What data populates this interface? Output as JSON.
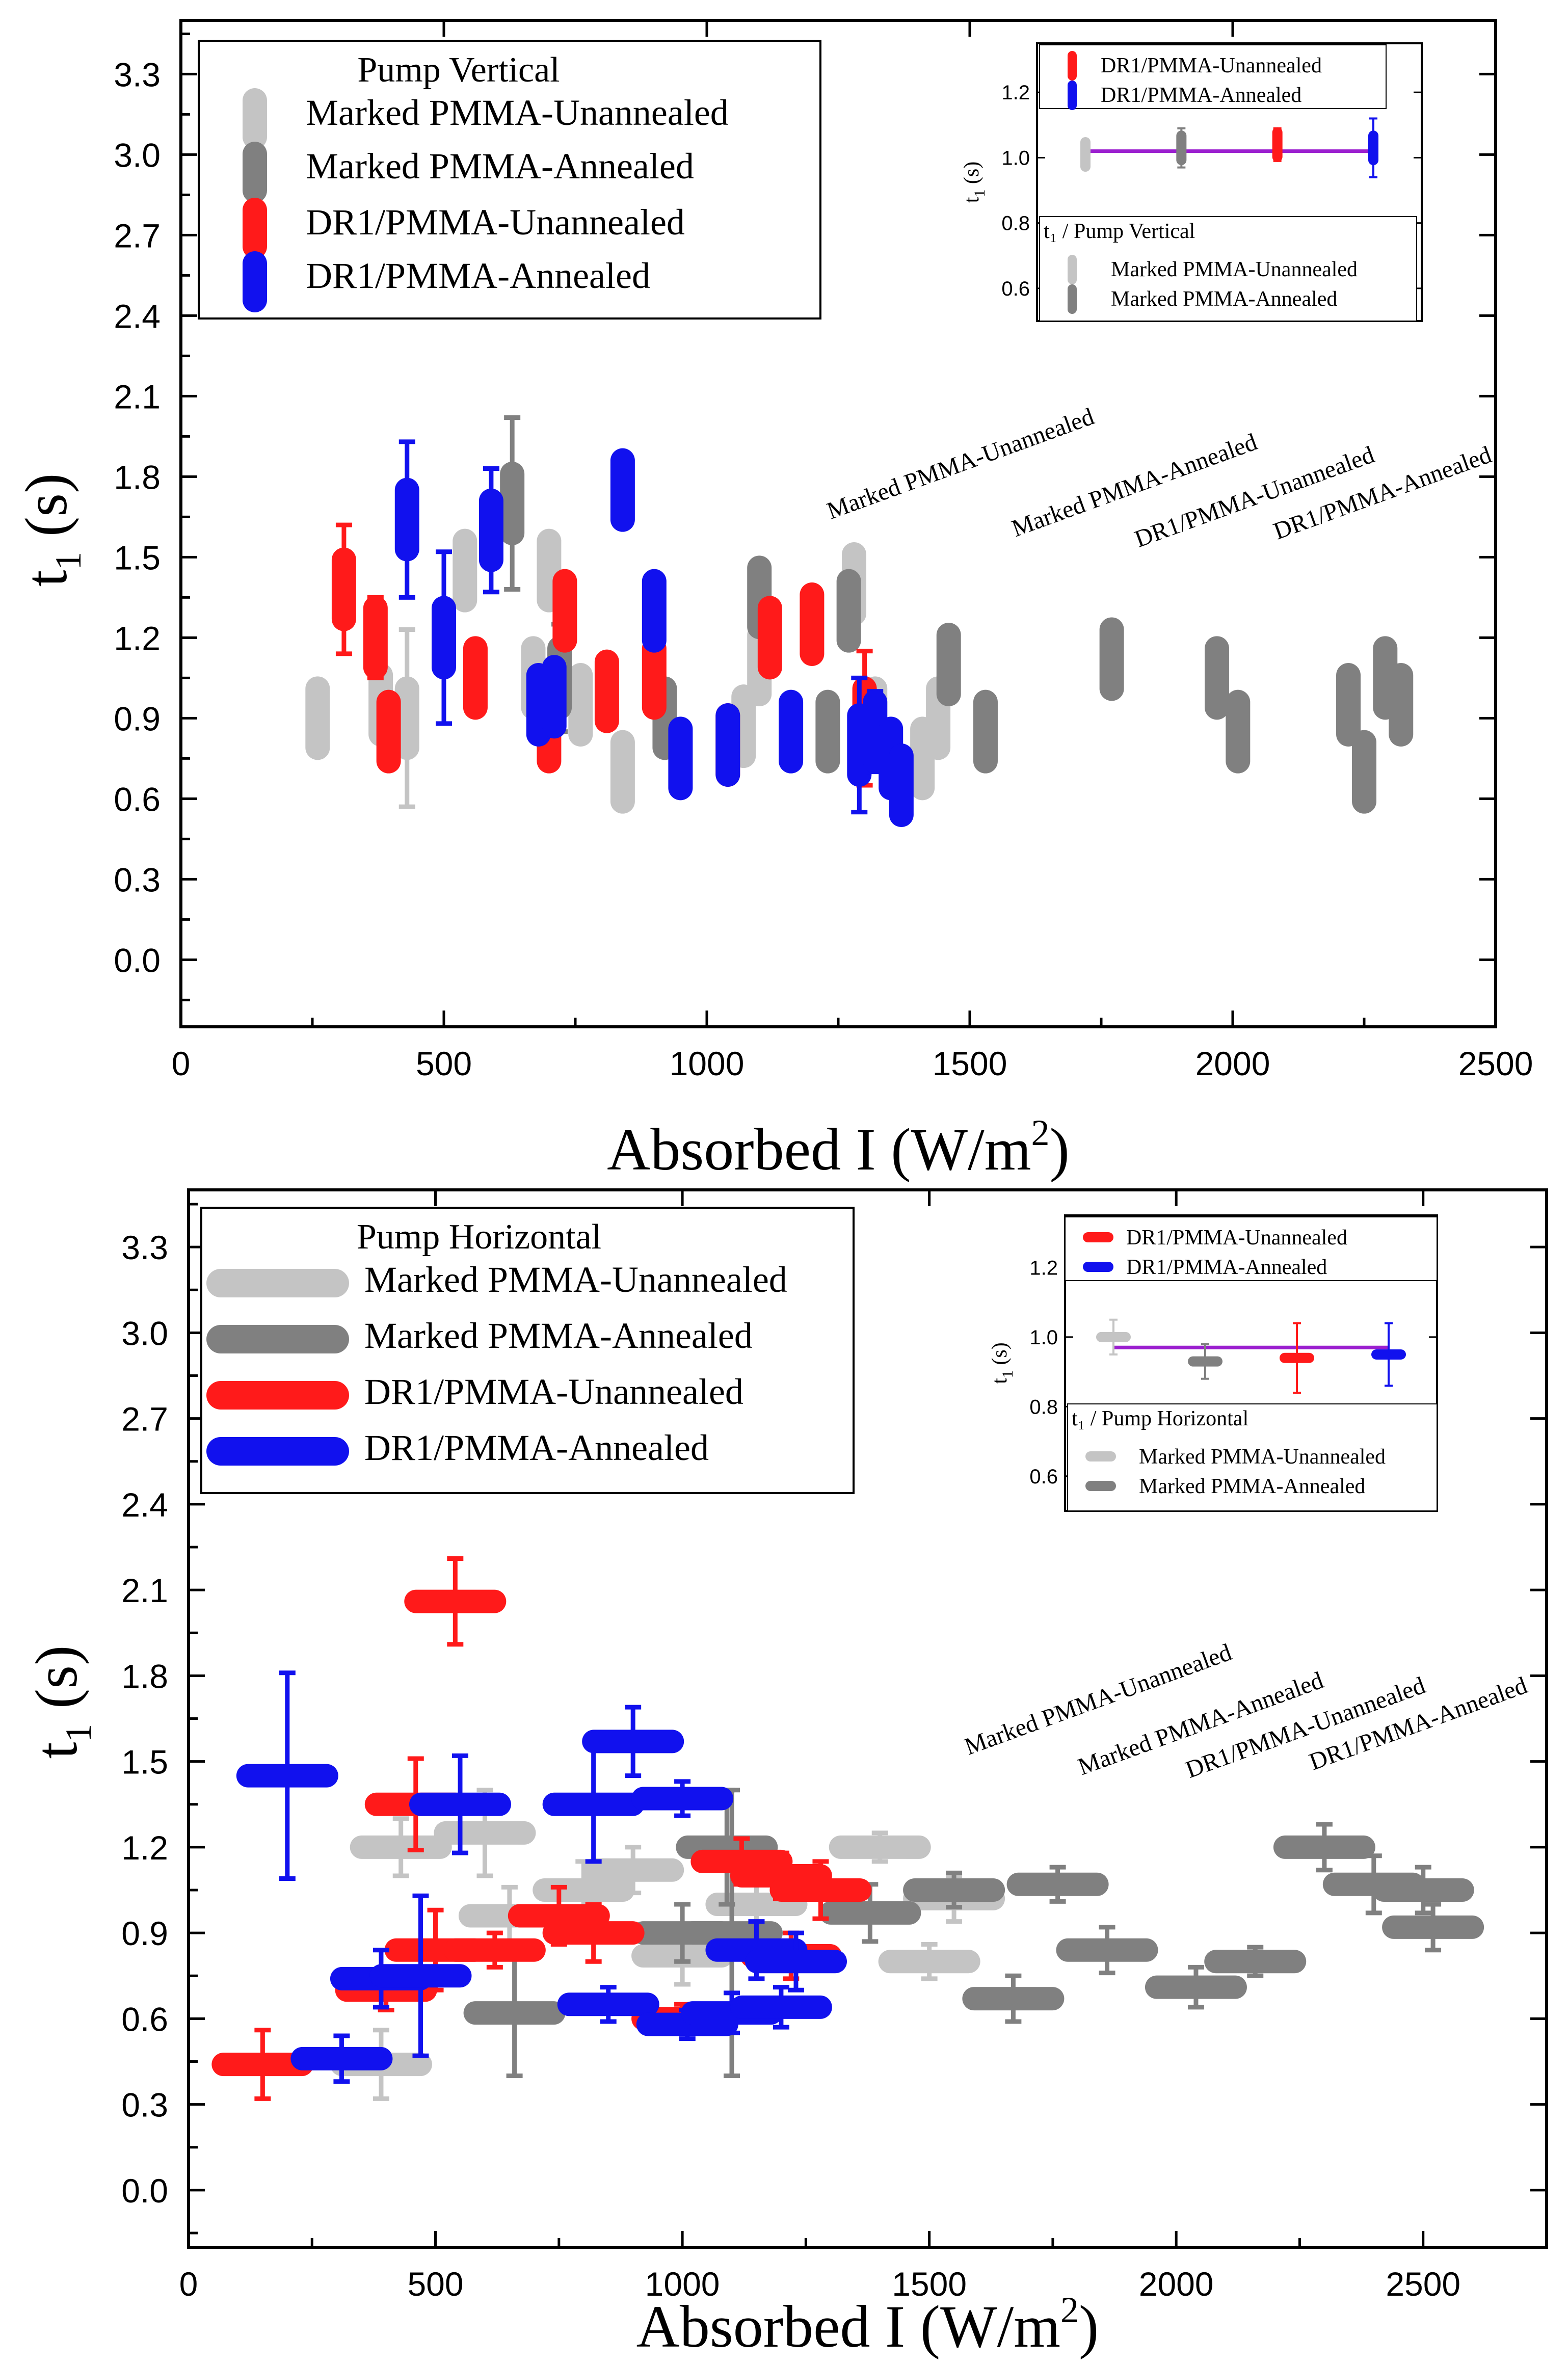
{
  "colors": {
    "marked_unannealed": "#c4c4c4",
    "marked_annealed": "#808080",
    "dr1_unannealed": "#ff1a1a",
    "dr1_annealed": "#1111ee",
    "fit_line": "#9b1fcf"
  },
  "chart_data": [
    {
      "type": "scatter",
      "title": "Pump Vertical",
      "xlabel": "Absorbed I (W/m²)",
      "ylabel": "t₁ (s)",
      "xlim": [
        0,
        2500
      ],
      "ylim": [
        -0.25,
        3.5
      ],
      "xticks": [
        "0",
        "500",
        "1000",
        "1500",
        "2000",
        "2500"
      ],
      "yticks": [
        "0.0",
        "0.3",
        "0.6",
        "0.9",
        "1.2",
        "1.5",
        "1.8",
        "2.1",
        "2.4",
        "2.7",
        "3.0",
        "3.3"
      ],
      "legend_position": "top-left",
      "legend_title": "Pump Vertical",
      "legend": [
        "Marked PMMA-Unannealed",
        "Marked PMMA-Annealed",
        "DR1/PMMA-Unannealed",
        "DR1/PMMA-Annealed"
      ],
      "marker": "vertical-bar",
      "series": [
        {
          "name": "Marked PMMA-Unannealed",
          "color_key": "marked_unannealed",
          "points": [
            [
              260,
              0.9,
              0.1
            ],
            [
              380,
              0.95,
              0.12
            ],
            [
              430,
              0.9,
              0.33
            ],
            [
              540,
              1.45,
              0.1
            ],
            [
              670,
              1.05,
              0.12
            ],
            [
              700,
              1.45,
              0.12
            ],
            [
              760,
              0.95,
              0.1
            ],
            [
              840,
              0.7,
              0.12
            ],
            [
              1070,
              0.87,
              0.1
            ],
            [
              1100,
              1.1,
              0.1
            ],
            [
              1280,
              1.4,
              0.08
            ],
            [
              1320,
              0.9,
              0.1
            ],
            [
              1410,
              0.75,
              0.12
            ],
            [
              1440,
              0.9,
              0.1
            ]
          ]
        },
        {
          "name": "Marked PMMA-Annealed",
          "color_key": "marked_annealed",
          "points": [
            [
              630,
              1.7,
              0.32
            ],
            [
              720,
              1.05,
              0.2
            ],
            [
              920,
              0.9,
              0.1
            ],
            [
              1100,
              1.35,
              0.12
            ],
            [
              1230,
              0.85,
              0.12
            ],
            [
              1270,
              1.3,
              0.12
            ],
            [
              1460,
              1.1,
              0.1
            ],
            [
              1530,
              0.85,
              0.1
            ],
            [
              1770,
              1.12,
              0.1
            ],
            [
              1970,
              1.05,
              0.1
            ],
            [
              2010,
              0.85,
              0.12
            ],
            [
              2220,
              0.95,
              0.1
            ],
            [
              2250,
              0.7,
              0.1
            ],
            [
              2290,
              1.05,
              0.1
            ],
            [
              2320,
              0.95,
              0.1
            ]
          ]
        },
        {
          "name": "DR1/PMMA-Unannealed",
          "color_key": "dr1_unannealed",
          "points": [
            [
              310,
              1.38,
              0.24
            ],
            [
              370,
              1.2,
              0.15
            ],
            [
              395,
              0.85,
              0.1
            ],
            [
              560,
              1.05,
              0.1
            ],
            [
              700,
              0.85,
              0.1
            ],
            [
              730,
              1.3,
              0.12
            ],
            [
              810,
              1.0,
              0.1
            ],
            [
              900,
              1.05,
              0.1
            ],
            [
              1040,
              0.8,
              0.12
            ],
            [
              1120,
              1.2,
              0.12
            ],
            [
              1200,
              1.25,
              0.1
            ],
            [
              1300,
              0.9,
              0.25
            ]
          ]
        },
        {
          "name": "DR1/PMMA-Annealed",
          "color_key": "dr1_annealed",
          "points": [
            [
              430,
              1.64,
              0.29
            ],
            [
              500,
              1.2,
              0.32
            ],
            [
              590,
              1.6,
              0.23
            ],
            [
              680,
              0.95,
              0.1
            ],
            [
              710,
              0.98,
              0.1
            ],
            [
              840,
              1.75,
              0.08
            ],
            [
              900,
              1.3,
              0.1
            ],
            [
              950,
              0.75,
              0.1
            ],
            [
              1040,
              0.8,
              0.12
            ],
            [
              1160,
              0.85,
              0.1
            ],
            [
              1290,
              0.8,
              0.25
            ],
            [
              1320,
              0.85,
              0.15
            ],
            [
              1350,
              0.75,
              0.1
            ],
            [
              1370,
              0.65,
              0.1
            ]
          ]
        }
      ],
      "inset": {
        "ylabel": "t₁ (s)",
        "ylim": [
          0.5,
          1.35
        ],
        "yticks": [
          "0.6",
          "0.8",
          "1.0",
          "1.2"
        ],
        "categories": [
          "Marked PMMA-Unannealed",
          "Marked PMMA-Annealed",
          "DR1/PMMA-Unannealed",
          "DR1/PMMA-Annealed"
        ],
        "values": [
          1.01,
          1.03,
          1.04,
          1.03
        ],
        "errors": [
          0.04,
          0.06,
          0.05,
          0.09
        ],
        "fit_value": 1.02,
        "legend_top": [
          "DR1/PMMA-Unannealed",
          "DR1/PMMA-Annealed"
        ],
        "legend_bottom_title": "t₁ / Pump Vertical",
        "legend_bottom": [
          "Marked PMMA-Unannealed",
          "Marked PMMA-Annealed"
        ]
      }
    },
    {
      "type": "scatter",
      "title": "Pump Horizontal",
      "xlabel": "Absorbed I (W/m²)",
      "ylabel": "t₁ (s)",
      "xlim": [
        0,
        2750
      ],
      "ylim": [
        -0.2,
        3.5
      ],
      "xticks": [
        "0",
        "500",
        "1000",
        "1500",
        "2000",
        "2500"
      ],
      "yticks": [
        "0.0",
        "0.3",
        "0.6",
        "0.9",
        "1.2",
        "1.5",
        "1.8",
        "2.1",
        "2.4",
        "2.7",
        "3.0",
        "3.3"
      ],
      "legend_position": "top-left",
      "legend_title": "Pump Horizontal",
      "legend": [
        "Marked PMMA-Unannealed",
        "Marked PMMA-Annealed",
        "DR1/PMMA-Unannealed",
        "DR1/PMMA-Annealed"
      ],
      "marker": "horizontal-bar",
      "series": [
        {
          "name": "Marked PMMA-Unannealed",
          "color_key": "marked_unannealed",
          "points": [
            [
              390,
              0.44,
              0.12
            ],
            [
              430,
              1.2,
              0.1
            ],
            [
              600,
              1.25,
              0.15
            ],
            [
              650,
              0.96,
              0.1
            ],
            [
              800,
              1.05,
              0.1
            ],
            [
              900,
              1.12,
              0.08
            ],
            [
              1000,
              0.82,
              0.1
            ],
            [
              1150,
              1.0,
              0.1
            ],
            [
              1400,
              1.2,
              0.05
            ],
            [
              1500,
              0.8,
              0.06
            ],
            [
              1550,
              1.02,
              0.08
            ]
          ]
        },
        {
          "name": "Marked PMMA-Annealed",
          "color_key": "marked_annealed",
          "points": [
            [
              660,
              0.62,
              0.22
            ],
            [
              1000,
              0.9,
              0.1
            ],
            [
              1090,
              1.2,
              0.2
            ],
            [
              1100,
              0.9,
              0.5
            ],
            [
              1380,
              0.97,
              0.1
            ],
            [
              1550,
              1.05,
              0.06
            ],
            [
              1670,
              0.67,
              0.08
            ],
            [
              1760,
              1.07,
              0.06
            ],
            [
              1860,
              0.84,
              0.08
            ],
            [
              2040,
              0.71,
              0.07
            ],
            [
              2160,
              0.8,
              0.05
            ],
            [
              2300,
              1.2,
              0.08
            ],
            [
              2400,
              1.07,
              0.1
            ],
            [
              2500,
              1.05,
              0.08
            ],
            [
              2520,
              0.92,
              0.08
            ]
          ]
        },
        {
          "name": "DR1/PMMA-Unannealed",
          "color_key": "dr1_unannealed",
          "points": [
            [
              150,
              0.44,
              0.12
            ],
            [
              400,
              0.7,
              0.07
            ],
            [
              460,
              1.35,
              0.16
            ],
            [
              500,
              0.84,
              0.14
            ],
            [
              540,
              2.06,
              0.15
            ],
            [
              620,
              0.84,
              0.06
            ],
            [
              750,
              0.96,
              0.1
            ],
            [
              820,
              0.9,
              0.1
            ],
            [
              1000,
              0.6,
              0.05
            ],
            [
              1120,
              1.15,
              0.08
            ],
            [
              1200,
              1.1,
              0.08
            ],
            [
              1220,
              0.82,
              0.08
            ],
            [
              1280,
              1.05,
              0.1
            ]
          ]
        },
        {
          "name": "DR1/PMMA-Annealed",
          "color_key": "dr1_annealed",
          "points": [
            [
              200,
              1.45,
              0.36
            ],
            [
              310,
              0.46,
              0.08
            ],
            [
              390,
              0.74,
              0.1
            ],
            [
              470,
              0.75,
              0.28
            ],
            [
              550,
              1.35,
              0.17
            ],
            [
              820,
              1.35,
              0.2
            ],
            [
              850,
              0.65,
              0.06
            ],
            [
              900,
              1.57,
              0.12
            ],
            [
              1000,
              1.37,
              0.06
            ],
            [
              1010,
              0.58,
              0.05
            ],
            [
              1100,
              0.62,
              0.07
            ],
            [
              1150,
              0.84,
              0.1
            ],
            [
              1200,
              0.64,
              0.07
            ],
            [
              1230,
              0.8,
              0.1
            ]
          ]
        }
      ],
      "inset": {
        "ylabel": "t₁ (s)",
        "ylim": [
          0.5,
          1.35
        ],
        "yticks": [
          "0.6",
          "0.8",
          "1.0",
          "1.2"
        ],
        "categories": [
          "Marked PMMA-Unannealed",
          "Marked PMMA-Annealed",
          "DR1/PMMA-Unannealed",
          "DR1/PMMA-Annealed"
        ],
        "values": [
          1.0,
          0.93,
          0.94,
          0.95
        ],
        "errors": [
          0.05,
          0.05,
          0.1,
          0.09
        ],
        "fit_value": 0.97,
        "legend_top": [
          "DR1/PMMA-Unannealed",
          "DR1/PMMA-Annealed"
        ],
        "legend_bottom_title": "t₁ / Pump Horizontal",
        "legend_bottom": [
          "Marked PMMA-Unannealed",
          "Marked PMMA-Annealed"
        ]
      }
    }
  ]
}
